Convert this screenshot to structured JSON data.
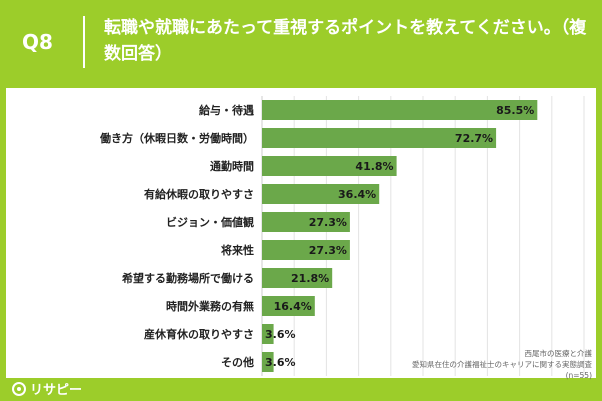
{
  "header": {
    "question_number": "Q8",
    "title": "転職や就職にあたって重視するポイントを教えてください。（複数回答）"
  },
  "chart_data": {
    "type": "bar",
    "orientation": "horizontal",
    "categories": [
      "給与・待遇",
      "働き方（休暇日数・労働時間）",
      "通勤時間",
      "有給休暇の取りやすさ",
      "ビジョン・価値観",
      "将来性",
      "希望する勤務場所で働ける",
      "時間外業務の有無",
      "産休育休の取りやすさ",
      "その他"
    ],
    "values": [
      85.5,
      72.7,
      41.8,
      36.4,
      27.3,
      27.3,
      21.8,
      16.4,
      3.6,
      3.6
    ],
    "value_labels": [
      "85.5%",
      "72.7%",
      "41.8%",
      "36.4%",
      "27.3%",
      "27.3%",
      "21.8%",
      "16.4%",
      "3.6%",
      "3.6%"
    ],
    "xlim": [
      0,
      100
    ],
    "bar_color": "#6ba84a",
    "grid": true
  },
  "source": {
    "line1": "西尾市の医療と介護",
    "line2": "愛知県在住の介護福祉士のキャリアに関する実態調査",
    "line3": "(n=55)"
  },
  "footer": {
    "logo_text": "リサピー"
  },
  "colors": {
    "background": "#9ccd2a",
    "bar": "#6ba84a",
    "card": "#ffffff"
  }
}
